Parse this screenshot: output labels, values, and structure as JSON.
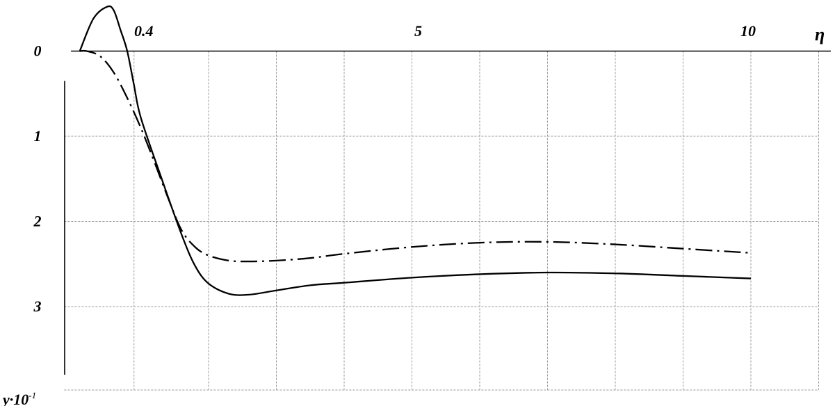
{
  "chart_data": {
    "type": "line",
    "title": "",
    "xlabel": "η",
    "ylabel": "y·10",
    "ylabel_exponent": "-1",
    "x_tick_labels": [
      {
        "value": 0.4,
        "label": "0.4"
      },
      {
        "value": 5,
        "label": "5"
      },
      {
        "value": 10,
        "label": "10"
      }
    ],
    "y_tick_labels": [
      {
        "value": 0,
        "label": "0"
      },
      {
        "value": 1,
        "label": "1"
      },
      {
        "value": 2,
        "label": "2"
      },
      {
        "value": 3,
        "label": "3"
      }
    ],
    "xlim": [
      0,
      10.7
    ],
    "ylim": [
      -0.55,
      4.05
    ],
    "y_inverted": true,
    "grid": true,
    "series": [
      {
        "style": "solid",
        "color": "#000000",
        "x": [
          0.1,
          0.3,
          0.5,
          0.6,
          0.7,
          0.8,
          0.9,
          1.0,
          1.3,
          1.6,
          1.8,
          2.0,
          2.3,
          2.6,
          3.0,
          3.5,
          4.0,
          5.0,
          6.0,
          7.0,
          8.0,
          9.0,
          10.0
        ],
        "y": [
          0.0,
          -0.38,
          -0.52,
          -0.48,
          -0.25,
          0.0,
          0.4,
          0.78,
          1.48,
          2.15,
          2.52,
          2.73,
          2.85,
          2.86,
          2.81,
          2.75,
          2.72,
          2.66,
          2.62,
          2.6,
          2.61,
          2.64,
          2.67
        ]
      },
      {
        "style": "dash-dot",
        "color": "#000000",
        "x": [
          0.1,
          0.2,
          0.4,
          0.6,
          0.8,
          1.0,
          1.2,
          1.4,
          1.6,
          1.8,
          2.0,
          2.3,
          2.6,
          3.0,
          3.5,
          4.0,
          5.0,
          6.0,
          7.0,
          8.0,
          9.0,
          10.0
        ],
        "y": [
          0.0,
          0.0,
          0.06,
          0.25,
          0.55,
          0.9,
          1.3,
          1.72,
          2.1,
          2.3,
          2.4,
          2.46,
          2.47,
          2.46,
          2.43,
          2.38,
          2.3,
          2.25,
          2.24,
          2.27,
          2.32,
          2.37
        ]
      }
    ]
  }
}
